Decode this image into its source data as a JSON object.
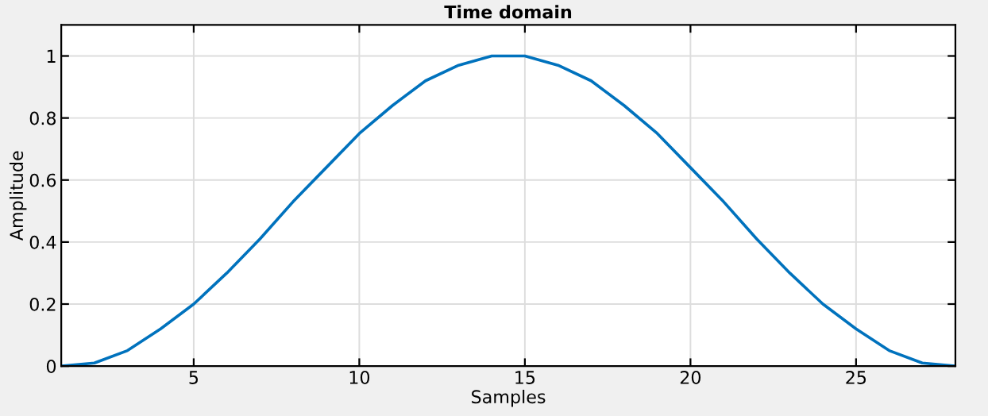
{
  "chart_data": {
    "type": "line",
    "title": "Time domain",
    "xlabel": "Samples",
    "ylabel": "Amplitude",
    "x": [
      1,
      2,
      3,
      4,
      5,
      6,
      7,
      8,
      9,
      10,
      11,
      12,
      13,
      14,
      15,
      16,
      17,
      18,
      19,
      20,
      21,
      22,
      23,
      24,
      25,
      26,
      27,
      28
    ],
    "series": [
      {
        "color": "#0072bd",
        "values": [
          0,
          0.01,
          0.05,
          0.12,
          0.2,
          0.3,
          0.41,
          0.53,
          0.64,
          0.75,
          0.84,
          0.92,
          0.97,
          1,
          1,
          0.97,
          0.92,
          0.84,
          0.75,
          0.64,
          0.53,
          0.41,
          0.3,
          0.2,
          0.12,
          0.05,
          0.01,
          0
        ]
      }
    ],
    "xlim": [
      1,
      28
    ],
    "ylim": [
      0,
      1.1
    ],
    "xticks": [
      5,
      10,
      15,
      20,
      25
    ],
    "yticks": [
      0,
      0.2,
      0.4,
      0.6,
      0.8,
      1
    ],
    "grid": true,
    "marker": "none",
    "line_style": "solid"
  }
}
